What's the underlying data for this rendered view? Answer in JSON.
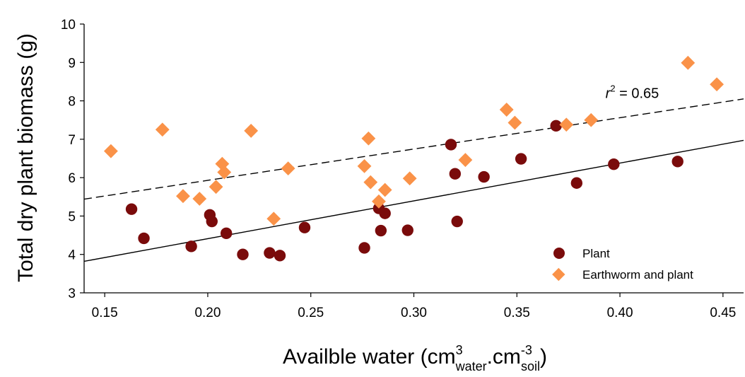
{
  "chart_data": {
    "type": "scatter",
    "title": "",
    "ylabel": "Total dry plant biomass (g)",
    "xlabel": {
      "main": "Availble water (cm",
      "sup1": "3",
      "sub1": "water",
      "mid": ".cm",
      "sup2": "-3",
      "sub2": "soil",
      "end": ")"
    },
    "xlim": [
      0.14,
      0.46
    ],
    "ylim": [
      3,
      10
    ],
    "xticks": [
      "0.15",
      "0.20",
      "0.25",
      "0.30",
      "0.35",
      "0.40",
      "0.45"
    ],
    "xtick_values": [
      0.15,
      0.2,
      0.25,
      0.3,
      0.35,
      0.4,
      0.45
    ],
    "yticks": [
      "3",
      "4",
      "5",
      "6",
      "7",
      "8",
      "9",
      "10"
    ],
    "ytick_values": [
      3,
      4,
      5,
      6,
      7,
      8,
      9,
      10
    ],
    "grid": false,
    "legend_position": "bottom-right",
    "annotation": {
      "italic": "r",
      "sup": "2",
      "rest": " = 0.65",
      "x": 0.393,
      "y": 8.2
    },
    "series": [
      {
        "name": "Plant",
        "marker": "circle",
        "color": "#7a0b0b",
        "trendline": {
          "style": "solid",
          "x": [
            0.14,
            0.46
          ],
          "y": [
            3.82,
            6.97
          ]
        },
        "points": [
          [
            0.163,
            5.18
          ],
          [
            0.169,
            4.42
          ],
          [
            0.192,
            4.21
          ],
          [
            0.201,
            5.03
          ],
          [
            0.202,
            4.86
          ],
          [
            0.209,
            4.55
          ],
          [
            0.217,
            4.0
          ],
          [
            0.23,
            4.04
          ],
          [
            0.235,
            3.97
          ],
          [
            0.247,
            4.7
          ],
          [
            0.276,
            4.17
          ],
          [
            0.283,
            5.2
          ],
          [
            0.284,
            4.62
          ],
          [
            0.286,
            5.07
          ],
          [
            0.297,
            4.63
          ],
          [
            0.318,
            6.86
          ],
          [
            0.32,
            6.1
          ],
          [
            0.321,
            4.86
          ],
          [
            0.334,
            6.02
          ],
          [
            0.352,
            6.49
          ],
          [
            0.369,
            7.35
          ],
          [
            0.379,
            5.86
          ],
          [
            0.397,
            6.35
          ],
          [
            0.428,
            6.42
          ]
        ]
      },
      {
        "name": "Earthworm and plant",
        "marker": "diamond",
        "color": "#fa9248",
        "trendline": {
          "style": "dashed",
          "x": [
            0.14,
            0.46
          ],
          "y": [
            5.44,
            8.05
          ]
        },
        "points": [
          [
            0.153,
            6.69
          ],
          [
            0.178,
            7.25
          ],
          [
            0.188,
            5.52
          ],
          [
            0.196,
            5.45
          ],
          [
            0.204,
            5.76
          ],
          [
            0.207,
            6.36
          ],
          [
            0.208,
            6.14
          ],
          [
            0.221,
            7.22
          ],
          [
            0.232,
            4.93
          ],
          [
            0.239,
            6.24
          ],
          [
            0.276,
            6.3
          ],
          [
            0.278,
            7.02
          ],
          [
            0.279,
            5.88
          ],
          [
            0.283,
            5.38
          ],
          [
            0.286,
            5.68
          ],
          [
            0.298,
            5.98
          ],
          [
            0.325,
            6.46
          ],
          [
            0.345,
            7.77
          ],
          [
            0.349,
            7.43
          ],
          [
            0.374,
            7.38
          ],
          [
            0.386,
            7.5
          ],
          [
            0.433,
            8.99
          ],
          [
            0.447,
            8.43
          ]
        ]
      }
    ]
  }
}
